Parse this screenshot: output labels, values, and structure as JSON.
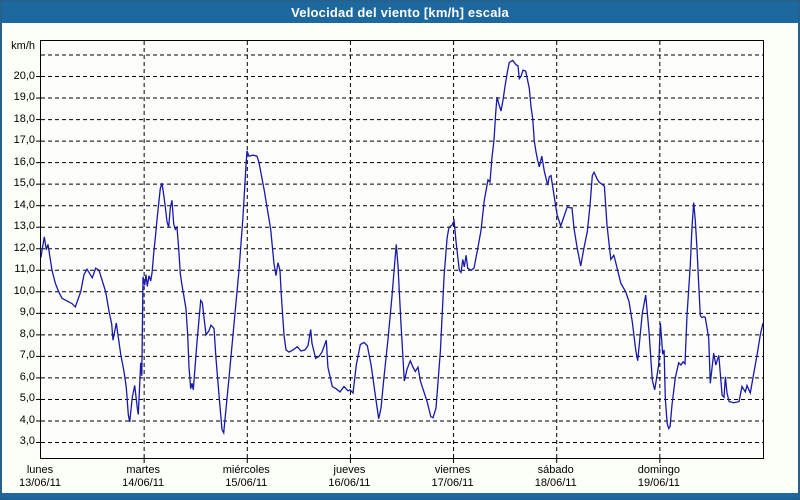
{
  "window": {
    "title": "Velocidad del viento [km/h] escala"
  },
  "colors": {
    "titlebar_bg": "#1D689E",
    "title_text": "#FFFFFF",
    "window_border": "#25618C",
    "content_bg": "#FCFEF8",
    "plot_bg": "#FDFEFB",
    "plot_border": "#000000",
    "gridline": "#000000",
    "series_line": "#1818AA",
    "label_text": "#000000"
  },
  "chart_data": {
    "type": "line",
    "title": "Velocidad del viento [km/h] escala",
    "ylabel": "km/h",
    "ylim": [
      2.28,
      21.65
    ],
    "grid": "dashed-black",
    "legend": "none",
    "y_axis": {
      "unit": "km/h",
      "gridlines": [
        3,
        4,
        5,
        6,
        7,
        8,
        9,
        10,
        11,
        12,
        13,
        14,
        15,
        16,
        17,
        18,
        19,
        20,
        21
      ],
      "tick_labels": [
        "20,0",
        "19,0",
        "18,0",
        "17,0",
        "16,0",
        "15,0",
        "14,0",
        "13,0",
        "12,0",
        "11,0",
        "10,0",
        "9,0",
        "8,0",
        "7,0",
        "6,0",
        "5,0",
        "4,0",
        "3,0"
      ],
      "tick_values": [
        20,
        19,
        18,
        17,
        16,
        15,
        14,
        13,
        12,
        11,
        10,
        9,
        8,
        7,
        6,
        5,
        4,
        3
      ]
    },
    "x_axis": {
      "span_days": 7,
      "categories": [
        {
          "day": "lunes",
          "date": "13/06/11"
        },
        {
          "day": "martes",
          "date": "14/06/11"
        },
        {
          "day": "miércoles",
          "date": "15/06/11"
        },
        {
          "day": "jueves",
          "date": "16/06/11"
        },
        {
          "day": "viernes",
          "date": "17/06/11"
        },
        {
          "day": "sábado",
          "date": "18/06/11"
        },
        {
          "day": "domingo",
          "date": "19/06/11"
        }
      ]
    },
    "series": [
      {
        "name": "Velocidad del viento [km/h]",
        "color": "#1818AA",
        "points": [
          [
            0.0,
            11.6
          ],
          [
            0.013,
            12.0
          ],
          [
            0.032,
            12.55
          ],
          [
            0.051,
            11.95
          ],
          [
            0.068,
            12.2
          ],
          [
            0.107,
            11.0
          ],
          [
            0.139,
            10.4
          ],
          [
            0.172,
            10.0
          ],
          [
            0.204,
            9.7
          ],
          [
            0.242,
            9.6
          ],
          [
            0.301,
            9.45
          ],
          [
            0.333,
            9.3
          ],
          [
            0.385,
            10.0
          ],
          [
            0.417,
            10.8
          ],
          [
            0.446,
            11.05
          ],
          [
            0.497,
            10.65
          ],
          [
            0.53,
            11.1
          ],
          [
            0.562,
            11.0
          ],
          [
            0.627,
            10.0
          ],
          [
            0.659,
            9.1
          ],
          [
            0.685,
            8.5
          ],
          [
            0.698,
            7.75
          ],
          [
            0.73,
            8.55
          ],
          [
            0.773,
            7.1
          ],
          [
            0.805,
            6.3
          ],
          [
            0.827,
            5.55
          ],
          [
            0.846,
            4.3
          ],
          [
            0.86,
            3.95
          ],
          [
            0.885,
            5.1
          ],
          [
            0.908,
            5.65
          ],
          [
            0.934,
            4.6
          ],
          [
            0.943,
            4.3
          ],
          [
            0.967,
            6.7
          ],
          [
            0.977,
            6.1
          ],
          [
            0.989,
            10.7
          ],
          [
            1.005,
            10.3
          ],
          [
            1.018,
            10.8
          ],
          [
            1.031,
            10.25
          ],
          [
            1.047,
            10.75
          ],
          [
            1.064,
            10.5
          ],
          [
            1.077,
            10.9
          ],
          [
            1.093,
            11.8
          ],
          [
            1.108,
            12.5
          ],
          [
            1.125,
            13.35
          ],
          [
            1.141,
            14.1
          ],
          [
            1.157,
            14.8
          ],
          [
            1.173,
            15.05
          ],
          [
            1.19,
            14.5
          ],
          [
            1.205,
            13.95
          ],
          [
            1.222,
            13.25
          ],
          [
            1.238,
            13.0
          ],
          [
            1.254,
            13.9
          ],
          [
            1.27,
            14.25
          ],
          [
            1.287,
            13.15
          ],
          [
            1.302,
            12.9
          ],
          [
            1.319,
            13.0
          ],
          [
            1.335,
            12.0
          ],
          [
            1.351,
            10.85
          ],
          [
            1.367,
            10.3
          ],
          [
            1.384,
            9.85
          ],
          [
            1.406,
            9.2
          ],
          [
            1.422,
            8.0
          ],
          [
            1.435,
            6.5
          ],
          [
            1.451,
            5.5
          ],
          [
            1.464,
            5.75
          ],
          [
            1.477,
            5.45
          ],
          [
            1.51,
            7.5
          ],
          [
            1.548,
            9.6
          ],
          [
            1.564,
            9.5
          ],
          [
            1.6,
            8.0
          ],
          [
            1.629,
            8.2
          ],
          [
            1.648,
            8.45
          ],
          [
            1.677,
            8.3
          ],
          [
            1.697,
            6.9
          ],
          [
            1.729,
            5.05
          ],
          [
            1.755,
            3.6
          ],
          [
            1.771,
            3.45
          ],
          [
            1.823,
            6.0
          ],
          [
            1.871,
            8.5
          ],
          [
            1.92,
            11.0
          ],
          [
            1.958,
            13.5
          ],
          [
            1.987,
            15.8
          ],
          [
            1.997,
            16.55
          ],
          [
            2.017,
            16.3
          ],
          [
            2.056,
            16.35
          ],
          [
            2.094,
            16.3
          ],
          [
            2.114,
            16.0
          ],
          [
            2.165,
            14.7
          ],
          [
            2.194,
            13.85
          ],
          [
            2.227,
            12.9
          ],
          [
            2.259,
            11.3
          ],
          [
            2.278,
            10.75
          ],
          [
            2.298,
            11.35
          ],
          [
            2.317,
            11.0
          ],
          [
            2.33,
            9.85
          ],
          [
            2.356,
            8.0
          ],
          [
            2.375,
            7.3
          ],
          [
            2.404,
            7.2
          ],
          [
            2.443,
            7.3
          ],
          [
            2.485,
            7.45
          ],
          [
            2.521,
            7.25
          ],
          [
            2.56,
            7.3
          ],
          [
            2.589,
            7.5
          ],
          [
            2.615,
            8.25
          ],
          [
            2.627,
            7.6
          ],
          [
            2.663,
            6.9
          ],
          [
            2.695,
            7.0
          ],
          [
            2.724,
            7.2
          ],
          [
            2.766,
            7.75
          ],
          [
            2.782,
            6.5
          ],
          [
            2.824,
            5.6
          ],
          [
            2.86,
            5.5
          ],
          [
            2.899,
            5.35
          ],
          [
            2.938,
            5.6
          ],
          [
            2.976,
            5.4
          ],
          [
            2.996,
            5.45
          ],
          [
            3.025,
            5.3
          ],
          [
            3.057,
            6.6
          ],
          [
            3.096,
            7.55
          ],
          [
            3.132,
            7.65
          ],
          [
            3.164,
            7.5
          ],
          [
            3.2,
            6.6
          ],
          [
            3.241,
            5.2
          ],
          [
            3.274,
            4.1
          ],
          [
            3.296,
            4.6
          ],
          [
            3.325,
            6.0
          ],
          [
            3.364,
            7.8
          ],
          [
            3.403,
            9.8
          ],
          [
            3.432,
            11.5
          ],
          [
            3.445,
            12.2
          ],
          [
            3.461,
            11.2
          ],
          [
            3.49,
            8.5
          ],
          [
            3.522,
            5.85
          ],
          [
            3.548,
            6.4
          ],
          [
            3.58,
            6.8
          ],
          [
            3.607,
            6.5
          ],
          [
            3.629,
            6.3
          ],
          [
            3.655,
            6.5
          ],
          [
            3.678,
            5.85
          ],
          [
            3.743,
            4.9
          ],
          [
            3.779,
            4.2
          ],
          [
            3.801,
            4.15
          ],
          [
            3.83,
            4.6
          ],
          [
            3.872,
            7.25
          ],
          [
            3.908,
            10.75
          ],
          [
            3.937,
            12.5
          ],
          [
            3.956,
            13.0
          ],
          [
            3.985,
            13.1
          ],
          [
            4.005,
            13.3
          ],
          [
            4.024,
            12.35
          ],
          [
            4.056,
            11.0
          ],
          [
            4.072,
            10.9
          ],
          [
            4.089,
            11.5
          ],
          [
            4.104,
            11.15
          ],
          [
            4.121,
            11.7
          ],
          [
            4.137,
            11.1
          ],
          [
            4.169,
            11.0
          ],
          [
            4.198,
            11.1
          ],
          [
            4.234,
            12.0
          ],
          [
            4.266,
            12.85
          ],
          [
            4.298,
            14.25
          ],
          [
            4.334,
            15.2
          ],
          [
            4.353,
            15.1
          ],
          [
            4.372,
            16.2
          ],
          [
            4.392,
            17.05
          ],
          [
            4.408,
            18.3
          ],
          [
            4.421,
            19.05
          ],
          [
            4.44,
            18.7
          ],
          [
            4.46,
            18.4
          ],
          [
            4.479,
            18.9
          ],
          [
            4.501,
            19.6
          ],
          [
            4.525,
            20.3
          ],
          [
            4.54,
            20.65
          ],
          [
            4.573,
            20.75
          ],
          [
            4.605,
            20.55
          ],
          [
            4.625,
            20.5
          ],
          [
            4.637,
            19.9
          ],
          [
            4.654,
            20.0
          ],
          [
            4.673,
            20.3
          ],
          [
            4.699,
            20.25
          ],
          [
            4.719,
            19.8
          ],
          [
            4.734,
            19.45
          ],
          [
            4.751,
            18.6
          ],
          [
            4.767,
            18.05
          ],
          [
            4.783,
            17.0
          ],
          [
            4.799,
            16.5
          ],
          [
            4.816,
            16.1
          ],
          [
            4.831,
            15.8
          ],
          [
            4.855,
            16.3
          ],
          [
            4.88,
            15.6
          ],
          [
            4.913,
            14.95
          ],
          [
            4.928,
            15.35
          ],
          [
            4.945,
            15.4
          ],
          [
            4.977,
            14.4
          ],
          [
            5.003,
            13.6
          ],
          [
            5.039,
            13.05
          ],
          [
            5.071,
            13.5
          ],
          [
            5.103,
            13.95
          ],
          [
            5.129,
            13.9
          ],
          [
            5.148,
            13.9
          ],
          [
            5.168,
            12.95
          ],
          [
            5.2,
            12.0
          ],
          [
            5.233,
            11.2
          ],
          [
            5.265,
            12.05
          ],
          [
            5.297,
            12.8
          ],
          [
            5.323,
            14.0
          ],
          [
            5.345,
            15.4
          ],
          [
            5.362,
            15.55
          ],
          [
            5.391,
            15.25
          ],
          [
            5.41,
            15.1
          ],
          [
            5.439,
            15.0
          ],
          [
            5.462,
            14.9
          ],
          [
            5.488,
            13.1
          ],
          [
            5.524,
            11.5
          ],
          [
            5.553,
            11.7
          ],
          [
            5.565,
            11.5
          ],
          [
            5.621,
            10.4
          ],
          [
            5.669,
            10.0
          ],
          [
            5.701,
            9.55
          ],
          [
            5.733,
            8.6
          ],
          [
            5.766,
            7.3
          ],
          [
            5.785,
            6.8
          ],
          [
            5.83,
            9.0
          ],
          [
            5.863,
            9.85
          ],
          [
            5.895,
            8.15
          ],
          [
            5.927,
            5.9
          ],
          [
            5.95,
            5.45
          ],
          [
            5.989,
            6.6
          ],
          [
            6.005,
            8.55
          ],
          [
            6.028,
            7.1
          ],
          [
            6.041,
            7.3
          ],
          [
            6.053,
            5.05
          ],
          [
            6.07,
            3.9
          ],
          [
            6.086,
            3.65
          ],
          [
            6.099,
            3.75
          ],
          [
            6.118,
            4.75
          ],
          [
            6.15,
            6.0
          ],
          [
            6.183,
            6.7
          ],
          [
            6.205,
            6.6
          ],
          [
            6.225,
            6.75
          ],
          [
            6.244,
            6.65
          ],
          [
            6.263,
            8.9
          ],
          [
            6.295,
            11.25
          ],
          [
            6.312,
            13.0
          ],
          [
            6.328,
            14.15
          ],
          [
            6.344,
            13.3
          ],
          [
            6.36,
            12.0
          ],
          [
            6.377,
            10.35
          ],
          [
            6.392,
            8.9
          ],
          [
            6.409,
            8.8
          ],
          [
            6.428,
            8.85
          ],
          [
            6.441,
            8.8
          ],
          [
            6.474,
            7.85
          ],
          [
            6.489,
            5.75
          ],
          [
            6.522,
            7.15
          ],
          [
            6.542,
            6.6
          ],
          [
            6.571,
            7.05
          ],
          [
            6.603,
            5.2
          ],
          [
            6.622,
            5.1
          ],
          [
            6.635,
            6.05
          ],
          [
            6.651,
            5.3
          ],
          [
            6.671,
            4.9
          ],
          [
            6.719,
            4.85
          ],
          [
            6.767,
            4.9
          ],
          [
            6.796,
            5.6
          ],
          [
            6.828,
            5.35
          ],
          [
            6.845,
            5.65
          ],
          [
            6.877,
            5.3
          ],
          [
            6.91,
            6.2
          ],
          [
            6.942,
            7.05
          ],
          [
            6.974,
            8.0
          ],
          [
            7.0,
            8.55
          ]
        ]
      }
    ]
  }
}
